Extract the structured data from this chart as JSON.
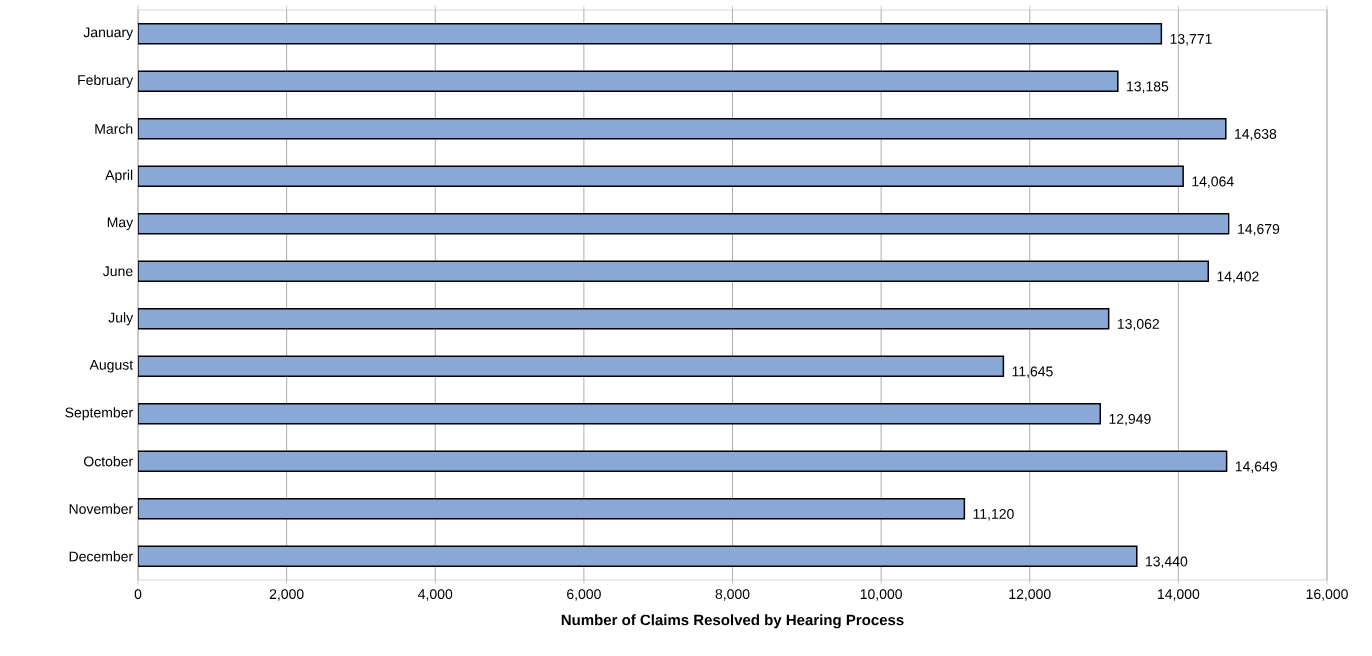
{
  "chart_data": {
    "type": "bar",
    "orientation": "horizontal",
    "xlabel": "Number of Claims Resolved by Hearing Process",
    "categories": [
      "January",
      "February",
      "March",
      "April",
      "May",
      "June",
      "July",
      "August",
      "September",
      "October",
      "November",
      "December"
    ],
    "values": [
      13771,
      13185,
      14638,
      14064,
      14679,
      14402,
      13062,
      11645,
      12949,
      14649,
      11120,
      13440
    ],
    "value_labels": [
      "13,771",
      "13,185",
      "14,638",
      "14,064",
      "14,679",
      "14,402",
      "13,062",
      "11,645",
      "12,949",
      "14,649",
      "11,120",
      "13,440"
    ],
    "color": "#8aa8d6",
    "xlim": [
      0,
      16000
    ],
    "xticks": [
      0,
      {
        "value": 2000,
        "label": "2,000"
      },
      {
        "value": 4000,
        "label": "4,000"
      },
      {
        "value": 6000,
        "label": "6,000"
      },
      {
        "value": 8000,
        "label": "8,000"
      },
      {
        "value": 10000,
        "label": "10,000"
      },
      {
        "value": 12000,
        "label": "12,000"
      },
      {
        "value": 14000,
        "label": "14,000"
      },
      {
        "value": 16000,
        "label": "16,000"
      }
    ],
    "grid": "x"
  }
}
